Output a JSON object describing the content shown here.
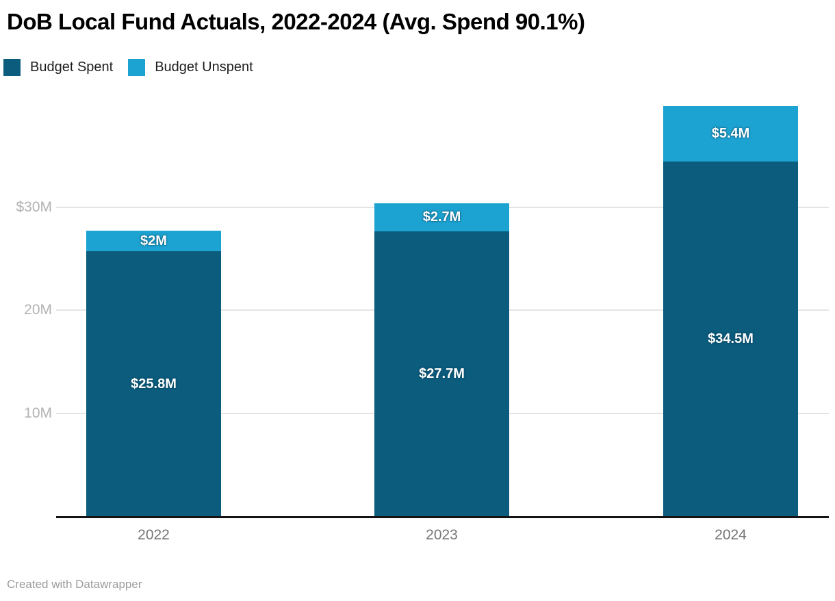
{
  "header": {
    "title": "DoB Local Fund Actuals, 2022-2024 (Avg. Spend 90.1%)"
  },
  "legend": {
    "position": "top-left",
    "items": [
      {
        "label": "Budget Spent",
        "color": "#0b5c7d"
      },
      {
        "label": "Budget Unspent",
        "color": "#1da3d1"
      }
    ]
  },
  "footer": {
    "credit": "Created with Datawrapper"
  },
  "chart_data": {
    "type": "bar",
    "stacked": true,
    "title": "DoB Local Fund Actuals, 2022-2024 (Avg. Spend 90.1%)",
    "categories": [
      "2022",
      "2023",
      "2024"
    ],
    "series": [
      {
        "name": "Budget Spent",
        "color": "#0b5c7d",
        "values": [
          25.8,
          27.7,
          34.5
        ],
        "labels": [
          "$25.8M",
          "$27.7M",
          "$34.5M"
        ]
      },
      {
        "name": "Budget Unspent",
        "color": "#1da3d1",
        "values": [
          2.0,
          2.7,
          5.4
        ],
        "labels": [
          "$2M",
          "$2.7M",
          "$5.4M"
        ]
      }
    ],
    "totals": [
      27.8,
      30.4,
      39.9
    ],
    "unit": "USD millions",
    "xlabel": "",
    "ylabel": "",
    "ylim": [
      0,
      40
    ],
    "y_ticks": [
      {
        "value": 30,
        "label": "$30M"
      },
      {
        "value": 20,
        "label": "20M"
      },
      {
        "value": 10,
        "label": "10M"
      }
    ],
    "grid": "horizontal",
    "legend_position": "top-left"
  }
}
